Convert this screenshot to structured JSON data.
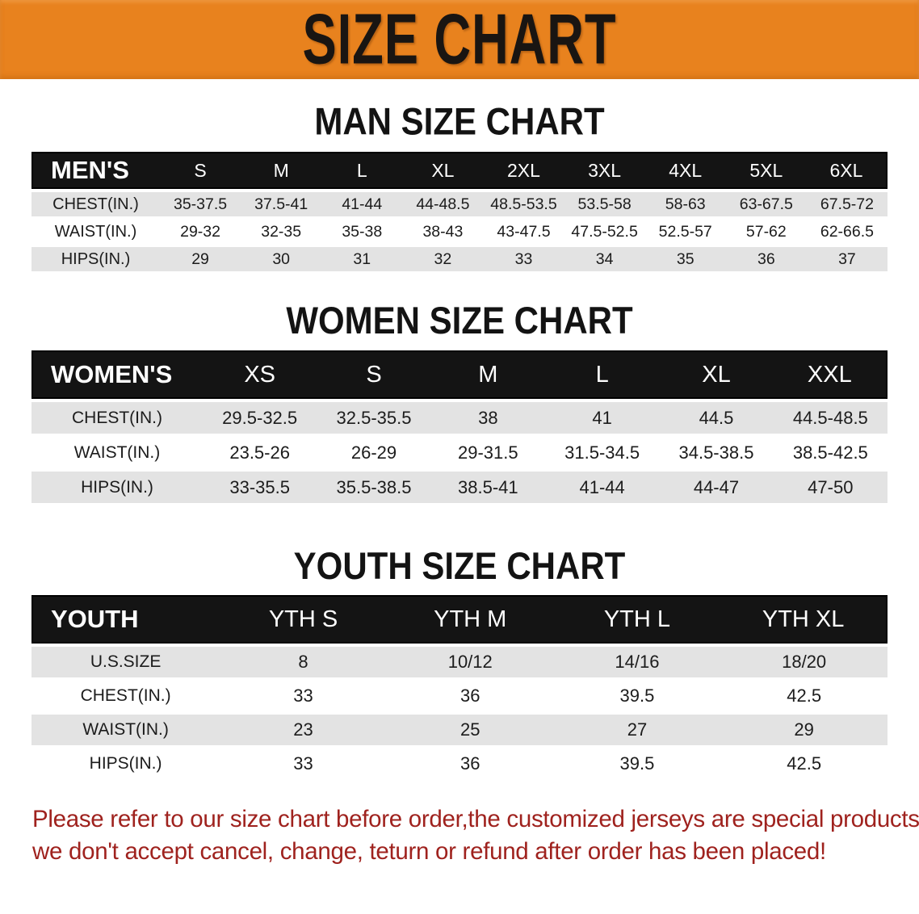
{
  "banner": {
    "title": "SIZE CHART"
  },
  "colors": {
    "accent_orange": "#E8821E",
    "table_header_black": "#141414",
    "row_gray": "#E3E3E3",
    "footer_red": "#9F221E"
  },
  "sections": [
    {
      "heading": "MAN SIZE CHART",
      "table": {
        "header": [
          "MEN'S",
          "S",
          "M",
          "L",
          "XL",
          "2XL",
          "3XL",
          "4XL",
          "5XL",
          "6XL"
        ],
        "rows": [
          {
            "label": "CHEST(IN.)",
            "values": [
              "35-37.5",
              "37.5-41",
              "41-44",
              "44-48.5",
              "48.5-53.5",
              "53.5-58",
              "58-63",
              "63-67.5",
              "67.5-72"
            ]
          },
          {
            "label": "WAIST(IN.)",
            "values": [
              "29-32",
              "32-35",
              "35-38",
              "38-43",
              "43-47.5",
              "47.5-52.5",
              "52.5-57",
              "57-62",
              "62-66.5"
            ]
          },
          {
            "label": "HIPS(IN.)",
            "values": [
              "29",
              "30",
              "31",
              "32",
              "33",
              "34",
              "35",
              "36",
              "37"
            ]
          }
        ]
      }
    },
    {
      "heading": "WOMEN SIZE CHART",
      "table": {
        "header": [
          "WOMEN'S",
          "XS",
          "S",
          "M",
          "L",
          "XL",
          "XXL"
        ],
        "rows": [
          {
            "label": "CHEST(IN.)",
            "values": [
              "29.5-32.5",
              "32.5-35.5",
              "38",
              "41",
              "44.5",
              "44.5-48.5"
            ]
          },
          {
            "label": "WAIST(IN.)",
            "values": [
              "23.5-26",
              "26-29",
              "29-31.5",
              "31.5-34.5",
              "34.5-38.5",
              "38.5-42.5"
            ]
          },
          {
            "label": "HIPS(IN.)",
            "values": [
              "33-35.5",
              "35.5-38.5",
              "38.5-41",
              "41-44",
              "44-47",
              "47-50"
            ]
          }
        ]
      }
    },
    {
      "heading": "YOUTH SIZE CHART",
      "table": {
        "header": [
          "YOUTH",
          "YTH S",
          "YTH M",
          "YTH L",
          "YTH XL"
        ],
        "rows": [
          {
            "label": "U.S.SIZE",
            "values": [
              "8",
              "10/12",
              "14/16",
              "18/20"
            ]
          },
          {
            "label": "CHEST(IN.)",
            "values": [
              "33",
              "36",
              "39.5",
              "42.5"
            ]
          },
          {
            "label": "WAIST(IN.)",
            "values": [
              "23",
              "25",
              "27",
              "29"
            ]
          },
          {
            "label": "HIPS(IN.)",
            "values": [
              "33",
              "36",
              "39.5",
              "42.5"
            ]
          }
        ]
      }
    }
  ],
  "footer": {
    "line1": "Please refer to our size chart before order,the customized jerseys are special products,",
    "line2": "we don't accept cancel, change, teturn or refund after order has been placed!"
  }
}
